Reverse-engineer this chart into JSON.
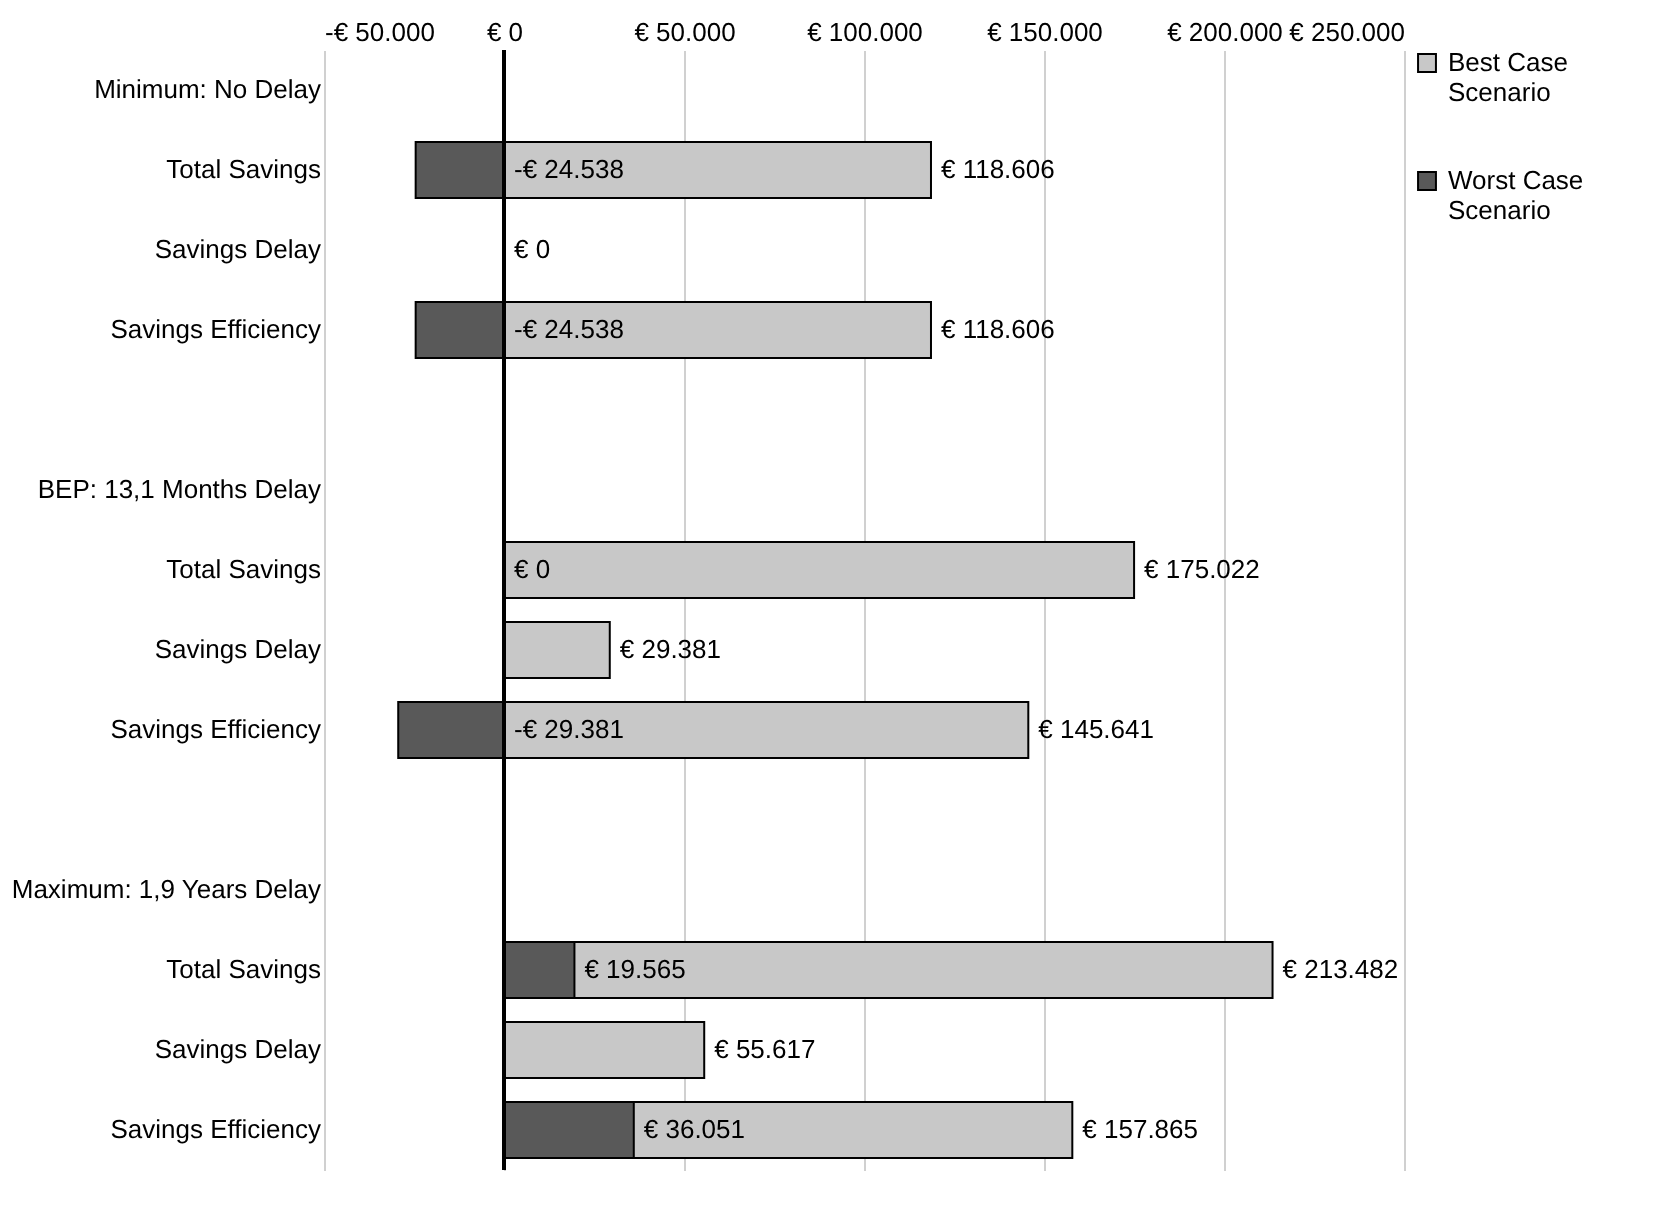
{
  "chart_data": {
    "type": "bar",
    "orientation": "horizontal",
    "categories": [
      "Minimum: No Delay",
      "Total Savings",
      "Savings Delay ",
      "Savings Efficiency",
      null,
      "BEP: 13,1 Months Delay",
      "Total Savings",
      "Savings Delay ",
      "Savings Efficiency",
      null,
      "Maximum: 1,9 Years Delay",
      "Total Savings",
      "Savings Delay ",
      "Savings Efficiency"
    ],
    "series": [
      {
        "name": "Best Case Scenario",
        "color": "#c8c8c8",
        "values": [
          null,
          118606,
          0,
          118606,
          null,
          null,
          175022,
          29381,
          145641,
          null,
          null,
          213482,
          55617,
          157865
        ],
        "value_labels": [
          null,
          "€ 118.606",
          "€ 0",
          "€ 118.606",
          null,
          null,
          "€ 175.022",
          "€ 29.381",
          "€ 145.641",
          null,
          null,
          "€ 213.482",
          "€ 55.617",
          "€ 157.865"
        ]
      },
      {
        "name": "Worst Case Scenario",
        "color": "#595959",
        "values": [
          null,
          -24538,
          null,
          -24538,
          null,
          null,
          0,
          null,
          -29381,
          null,
          null,
          19565,
          null,
          36051
        ],
        "value_labels": [
          null,
          "-€ 24.538",
          null,
          "-€ 24.538",
          null,
          null,
          "€ 0",
          null,
          "-€ 29.381",
          null,
          null,
          "€ 19.565",
          null,
          "€ 36.051"
        ]
      }
    ],
    "xlim": [
      -50000,
      250000
    ],
    "xticks": [
      {
        "value": -50000,
        "label": "-€ 50.000"
      },
      {
        "value": 0,
        "label": "€ 0"
      },
      {
        "value": 50000,
        "label": "€ 50.000"
      },
      {
        "value": 100000,
        "label": "€ 100.000"
      },
      {
        "value": 150000,
        "label": "€ 150.000"
      },
      {
        "value": 200000,
        "label": "€ 200.000"
      },
      {
        "value": 250000,
        "label": "€ 250.000"
      }
    ],
    "ref_lines": [
      {
        "axis": "x",
        "value": 0,
        "color": "#000000"
      }
    ],
    "grid": "x",
    "legend": "right"
  }
}
